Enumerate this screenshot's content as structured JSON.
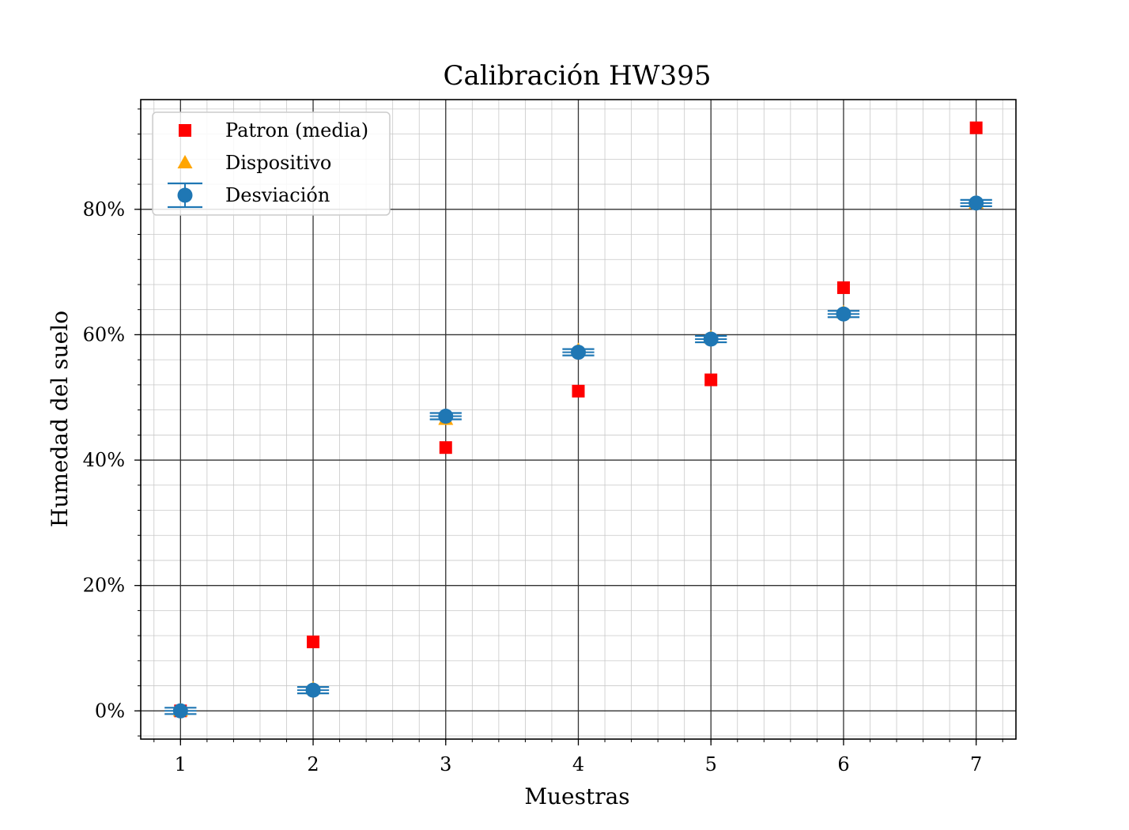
{
  "chart_data": {
    "type": "scatter",
    "title": "Calibración HW395",
    "xlabel": "Muestras",
    "ylabel": "Humedad del suelo",
    "xlim": [
      0.7,
      7.3
    ],
    "ylim": [
      -4.5,
      97.5
    ],
    "x_ticks": [
      {
        "value": 1,
        "label": "1"
      },
      {
        "value": 2,
        "label": "2"
      },
      {
        "value": 3,
        "label": "3"
      },
      {
        "value": 4,
        "label": "4"
      },
      {
        "value": 5,
        "label": "5"
      },
      {
        "value": 6,
        "label": "6"
      },
      {
        "value": 7,
        "label": "7"
      }
    ],
    "y_ticks": [
      {
        "value": 0,
        "label": "0%"
      },
      {
        "value": 20,
        "label": "20%"
      },
      {
        "value": 40,
        "label": "40%"
      },
      {
        "value": 60,
        "label": "60%"
      },
      {
        "value": 80,
        "label": "80%"
      }
    ],
    "x_minor_step": 0.2,
    "y_minor_step": 4,
    "grid": true,
    "legend_position": "top-left",
    "series": [
      {
        "name": "Patron (media)",
        "marker": "square",
        "color": "#ff0000",
        "points": [
          {
            "x": 1,
            "y": 0
          },
          {
            "x": 2,
            "y": 11
          },
          {
            "x": 3,
            "y": 42
          },
          {
            "x": 4,
            "y": 51
          },
          {
            "x": 5,
            "y": 52.8
          },
          {
            "x": 6,
            "y": 67.5
          },
          {
            "x": 7,
            "y": 93
          }
        ]
      },
      {
        "name": "Dispositivo",
        "marker": "triangle",
        "color": "#ffa500",
        "points": [
          {
            "x": 1,
            "y": 0
          },
          {
            "x": 2,
            "y": 3.5
          },
          {
            "x": 3,
            "y": 46.5
          },
          {
            "x": 4,
            "y": 57.5
          },
          {
            "x": 5,
            "y": 59.5
          },
          {
            "x": 6,
            "y": 63.5
          },
          {
            "x": 7,
            "y": 81
          }
        ]
      },
      {
        "name": "Desviación",
        "marker": "circle-errorbar",
        "color": "#1f77b4",
        "points": [
          {
            "x": 1,
            "y": 0,
            "xerr": 0.12
          },
          {
            "x": 2,
            "y": 3.3,
            "xerr": 0.12
          },
          {
            "x": 3,
            "y": 47,
            "xerr": 0.12
          },
          {
            "x": 4,
            "y": 57.2,
            "xerr": 0.12
          },
          {
            "x": 5,
            "y": 59.3,
            "xerr": 0.12
          },
          {
            "x": 6,
            "y": 63.3,
            "xerr": 0.12
          },
          {
            "x": 7,
            "y": 81,
            "xerr": 0.12
          }
        ]
      }
    ]
  }
}
